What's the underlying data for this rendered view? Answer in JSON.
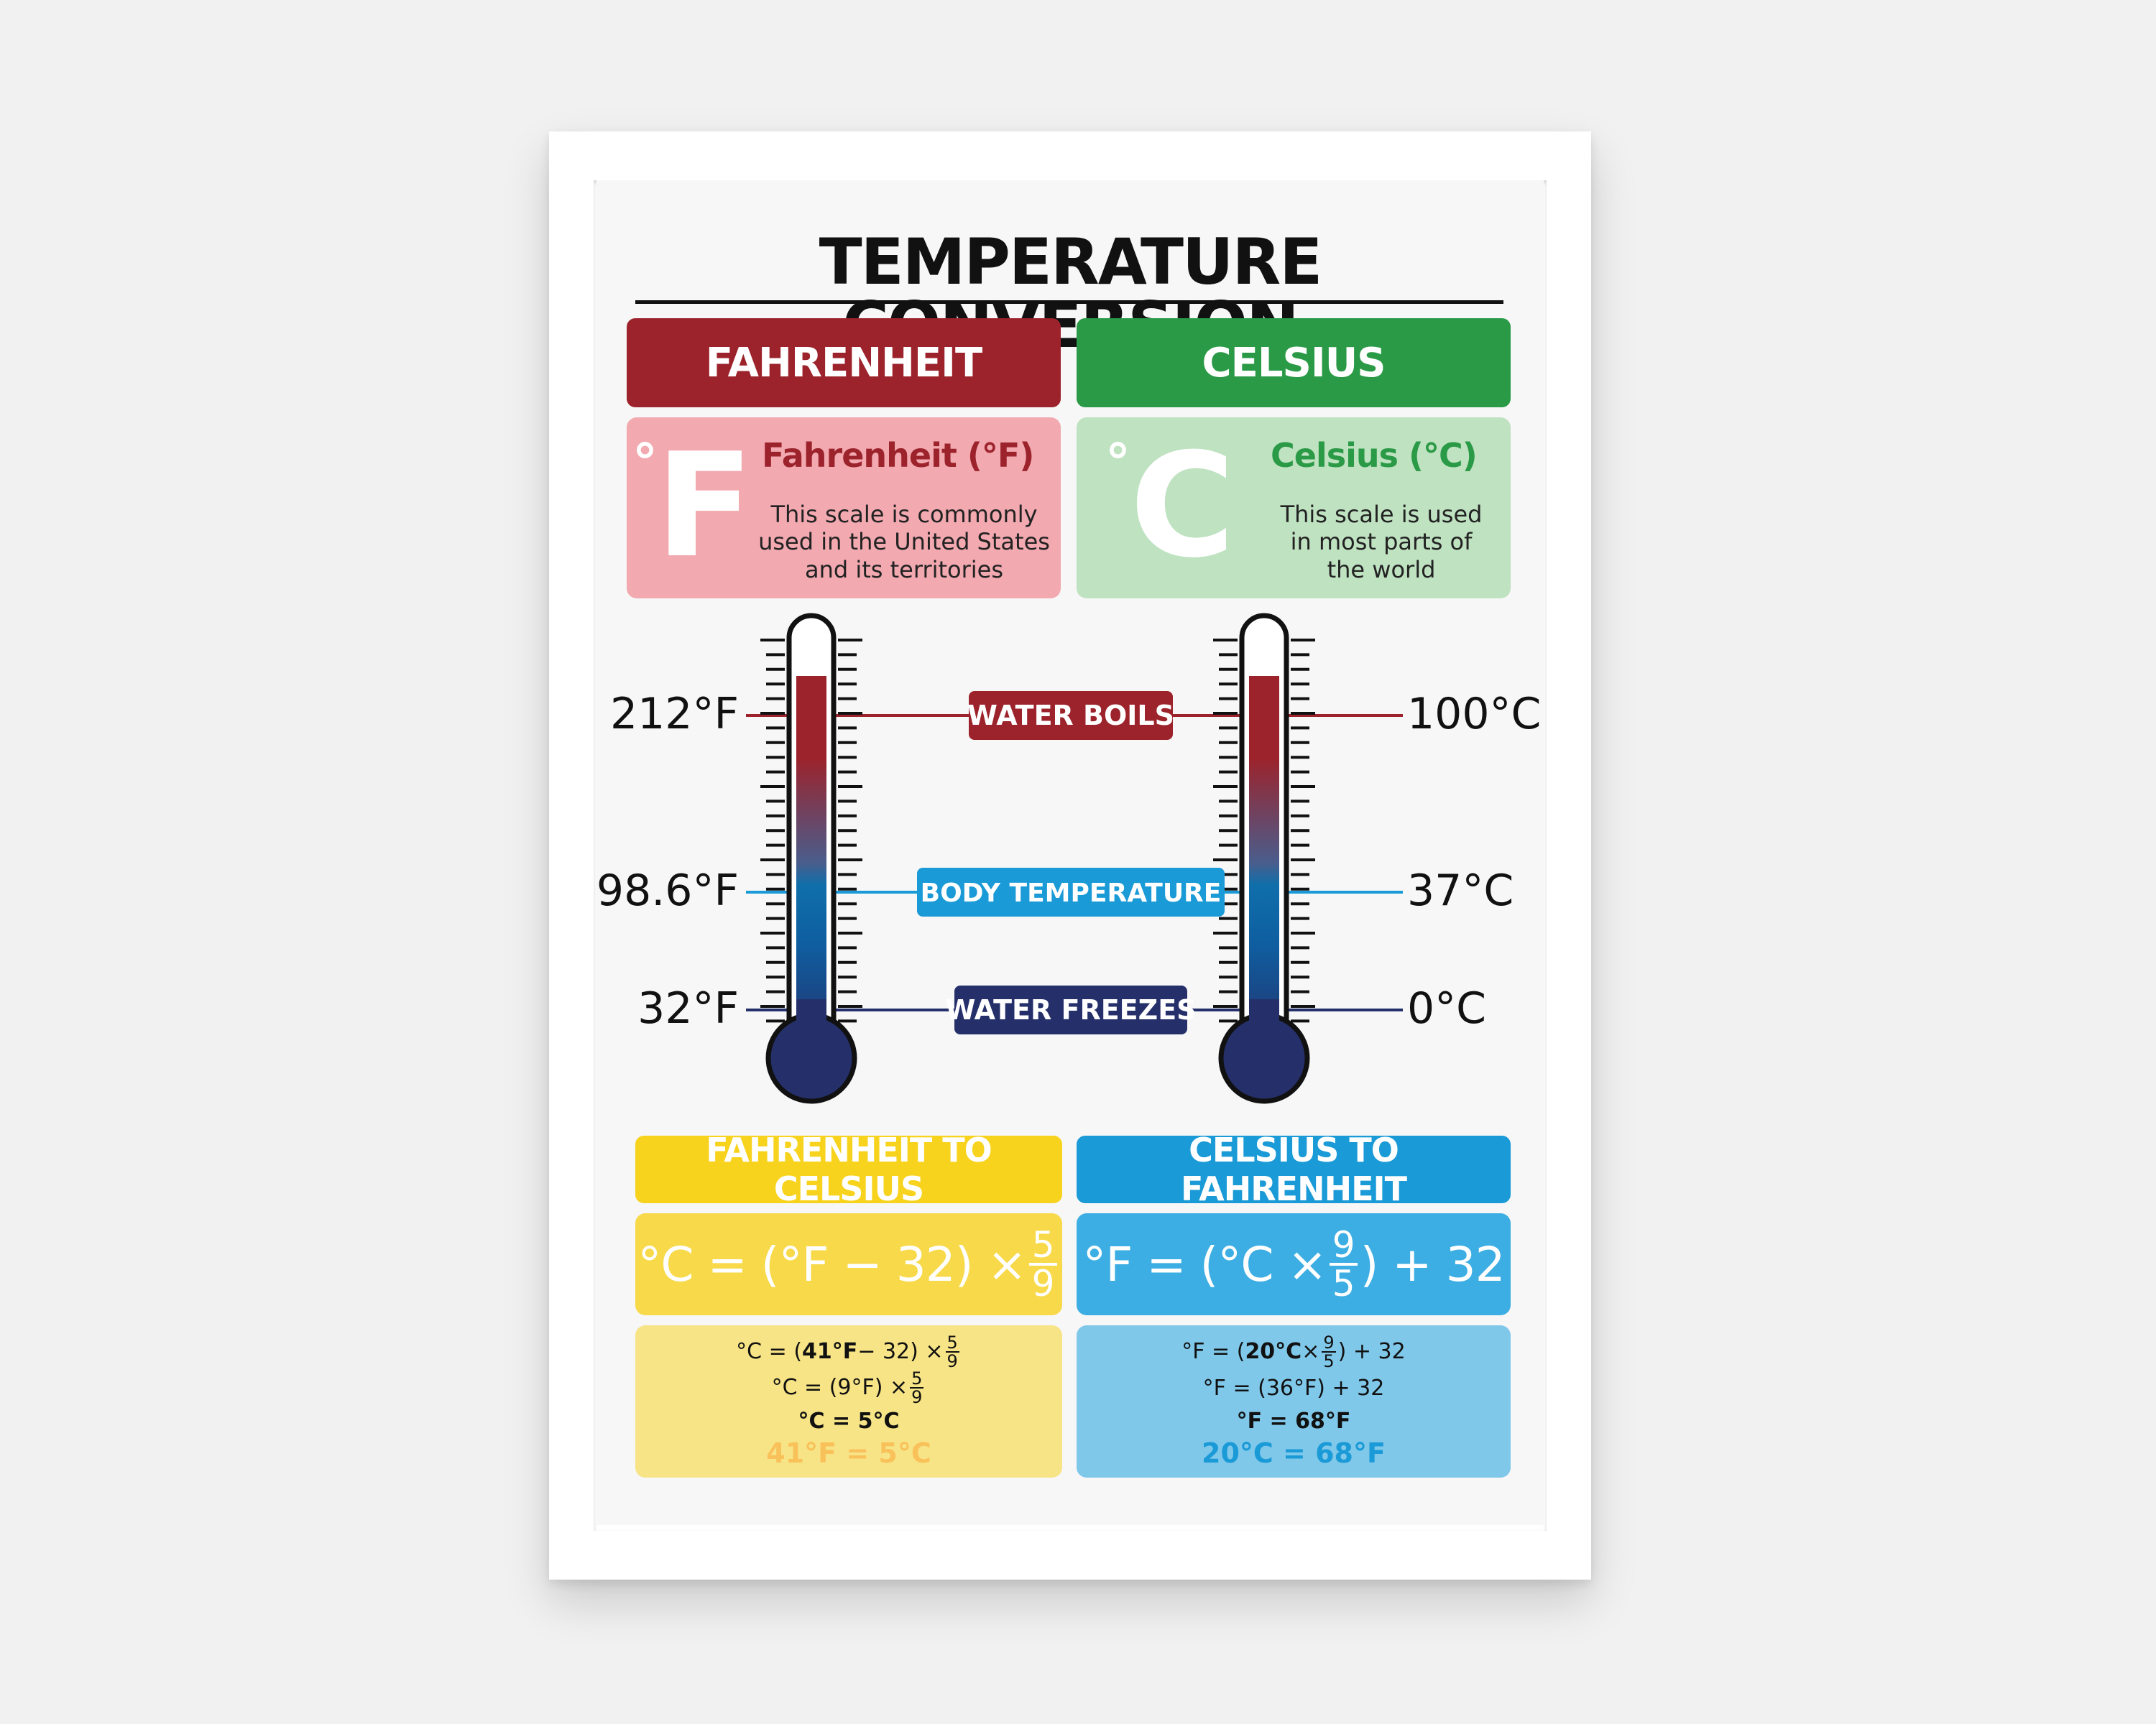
{
  "title": "TEMPERATURE CONVERSION",
  "fahrenheit": {
    "header": "FAHRENHEIT",
    "symbol_degree": "°",
    "symbol_letter": "F",
    "card_title": "Fahrenheit (°F)",
    "desc_lines": [
      "This scale is commonly",
      "used in the United States",
      "and its territories"
    ],
    "header_color": "#9c232c",
    "card_color": "#f2a9b0",
    "title_color": "#9c232c"
  },
  "celsius": {
    "header": "CELSIUS",
    "symbol_degree": "°",
    "symbol_letter": "C",
    "card_title": "Celsius (°C)",
    "desc_lines": [
      "This scale is used",
      "in most parts of",
      "the world"
    ],
    "header_color": "#2a9a47",
    "card_color": "#bfe2c1",
    "title_color": "#2a9a47"
  },
  "markers": [
    {
      "label": "WATER BOILS",
      "f": "212°F",
      "c": "100°C",
      "color": "#9c232c"
    },
    {
      "label": "BODY TEMPERATURE",
      "f": "98.6°F",
      "c": "37°C",
      "color": "#1a9ad6"
    },
    {
      "label": "WATER FREEZES",
      "f": "32°F",
      "c": "0°C",
      "color": "#25306b"
    }
  ],
  "f_to_c": {
    "header": "FAHRENHEIT TO CELSIUS",
    "formula_pre": "°C = (°F − 32) ×",
    "formula_num": "5",
    "formula_den": "9",
    "formula_post": "",
    "ex1_pre": "°C = (",
    "ex1_bold": "41°F",
    "ex1_mid": " − 32) ×",
    "ex1_num": "5",
    "ex1_den": "9",
    "ex2_pre": "°C = (9°F) ×",
    "ex2_num": "5",
    "ex2_den": "9",
    "ex3": "°C = 5°C",
    "result": "41°F = 5°C",
    "header_color": "#f7d31e",
    "formula_color": "#f7d94a",
    "example_color": "#f7e486",
    "result_color": "#f9c15a"
  },
  "c_to_f": {
    "header": "CELSIUS TO FAHRENHEIT",
    "formula_pre": "°F = (°C ×",
    "formula_num": "9",
    "formula_den": "5",
    "formula_post": ") + 32",
    "ex1_pre": "°F = (",
    "ex1_bold": "20°C",
    "ex1_mid": " ×",
    "ex1_num": "9",
    "ex1_den": "5",
    "ex1_post": ") + 32",
    "ex2": "°F = (36°F) + 32",
    "ex3": "°F = 68°F",
    "result": "20°C = 68°F",
    "header_color": "#1a9ad6",
    "formula_color": "#3daee3",
    "example_color": "#80c8ea",
    "result_color": "#1a9ad6"
  }
}
